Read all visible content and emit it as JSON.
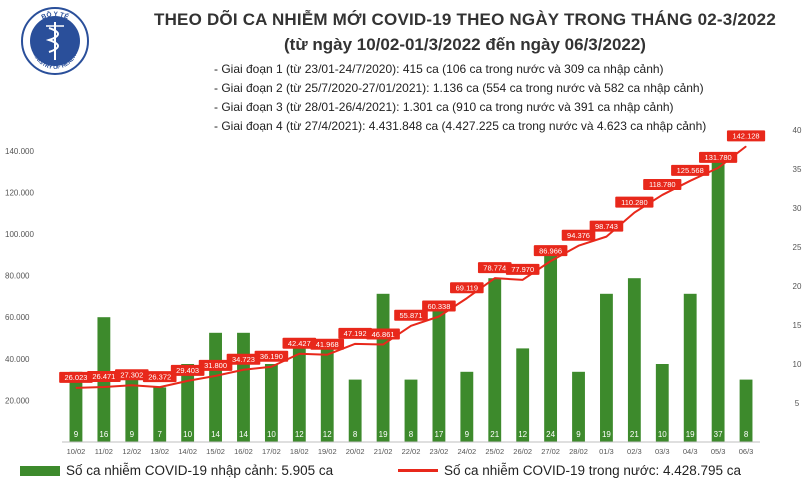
{
  "header": {
    "logo_text": "BỘ Y TẾ · MINISTRY OF HEALTH",
    "title_line1": "THEO DÕI CA NHIỄM MỚI COVID-19 THEO NGÀY TRONG THÁNG 02-3/2022",
    "title_line2": "(từ ngày 10/02-01/3/2022 đến ngày 06/3/2022)"
  },
  "notes": [
    "- Giai đoạn 1 (từ 23/01-24/7/2020): 415 ca (106 ca trong nước và 309 ca nhập cảnh)",
    "- Giai đoạn 2 (từ 25/7/2020-27/01/2021): 1.136 ca (554 ca trong nước và 582 ca nhập cảnh)",
    "- Giai đoạn 3 (từ 28/01-26/4/2021): 1.301 ca (910 ca trong nước và 391 ca nhập cảnh)",
    "- Giai đoạn 4 (từ 27/4/2021): 4.431.848 ca (4.427.225 ca trong nước và 4.623 ca nhập cảnh)"
  ],
  "legend": {
    "bars_label": "Số ca nhiễm COVID-19 nhập cảnh: 5.905 ca",
    "line_label": "Số ca nhiễm COVID-19 trong nước: 4.428.795 ca"
  },
  "colors": {
    "bar": "#3d8a2c",
    "line": "#e8281b",
    "label_box": "#e8281b",
    "label_text": "#ffffff",
    "axis_text": "#555555",
    "grid": "#d9d9d9"
  },
  "chart_data": {
    "type": "bar+line",
    "categories": [
      "10/02",
      "11/02",
      "12/02",
      "13/02",
      "14/02",
      "15/02",
      "16/02",
      "17/02",
      "18/02",
      "19/02",
      "20/02",
      "21/02",
      "22/02",
      "23/02",
      "24/02",
      "25/02",
      "26/02",
      "27/02",
      "28/02",
      "01/3",
      "02/3",
      "03/3",
      "04/3",
      "05/3",
      "06/3"
    ],
    "series": [
      {
        "name": "Số ca nhiễm COVID-19 nhập cảnh: 5.905 ca",
        "type": "bar",
        "axis": "right",
        "values": [
          9,
          16,
          9,
          7,
          10,
          14,
          14,
          10,
          12,
          12,
          8,
          19,
          8,
          17,
          9,
          21,
          12,
          24,
          9,
          19,
          21,
          10,
          19,
          37,
          8
        ],
        "labels": [
          "9",
          "16",
          "9",
          "7",
          "10",
          "14",
          "14",
          "10",
          "12",
          "12",
          "8",
          "19",
          "8",
          "17",
          "9",
          "21",
          "12",
          "24",
          "9",
          "19",
          "21",
          "10",
          "19",
          "37",
          "8"
        ]
      },
      {
        "name": "Số ca nhiễm COVID-19 trong nước: 4.428.795 ca",
        "type": "line",
        "axis": "left",
        "values": [
          26023,
          26471,
          27302,
          26372,
          29403,
          31800,
          34723,
          36190,
          42427,
          41968,
          47192,
          46861,
          55871,
          60338,
          69119,
          78774,
          77970,
          86966,
          94376,
          98743,
          110280,
          118780,
          125568,
          131780,
          142128
        ],
        "labels": [
          "26.023",
          "26.471",
          "27.302",
          "26.372",
          "29.403",
          "31.800",
          "34.723",
          "36.190",
          "42.427",
          "41.968",
          "47.192",
          "46.861",
          "55.871",
          "60.338",
          "69.119",
          "78.774",
          "77.970",
          "86.966",
          "94.376",
          "98.743",
          "110.280",
          "118.780",
          "125.568",
          "131.780",
          "142.128"
        ]
      }
    ],
    "y_left": {
      "range": [
        0,
        150000
      ],
      "ticks": [
        20000,
        40000,
        60000,
        80000,
        100000,
        120000,
        140000
      ],
      "tick_labels": [
        "20.000",
        "40.000",
        "60.000",
        "80.000",
        "100.000",
        "120.000",
        "140.000"
      ]
    },
    "y_right": {
      "range": [
        0,
        40
      ],
      "ticks": [
        5,
        10,
        15,
        20,
        25,
        30,
        35,
        40
      ],
      "tick_labels": [
        "5",
        "10",
        "15",
        "20",
        "25",
        "30",
        "35",
        "40"
      ]
    },
    "grid": false
  }
}
